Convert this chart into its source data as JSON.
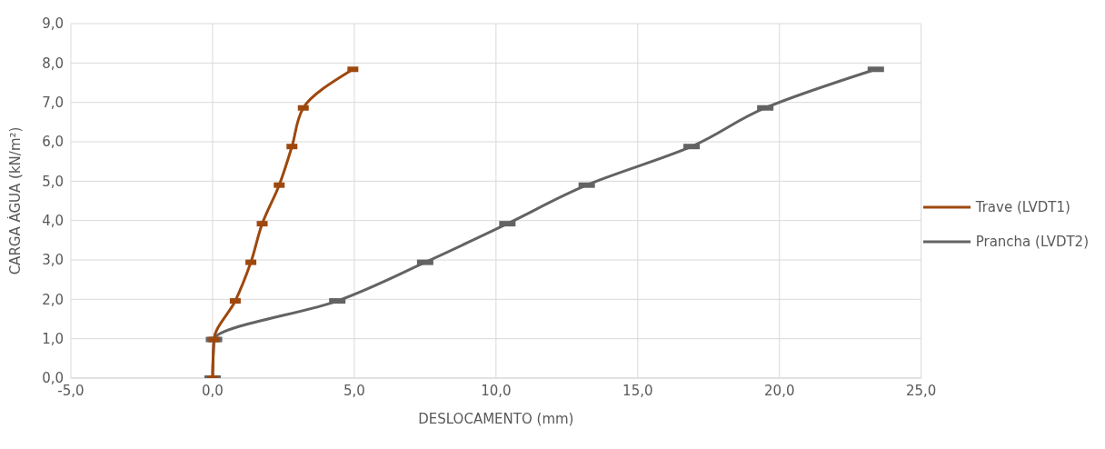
{
  "chart_data": {
    "type": "line",
    "xlabel": "DESLOCAMENTO (mm)",
    "ylabel": "CARGA ÁGUA (kN/m²)",
    "series": [
      {
        "name": "Trave (LVDT1)",
        "color": "#9e480e",
        "x": [
          0,
          0.05,
          0.8,
          1.35,
          1.75,
          2.35,
          2.8,
          3.2,
          4.95
        ],
        "values": [
          0,
          0.98,
          1.96,
          2.94,
          3.92,
          4.9,
          5.88,
          6.86,
          7.84
        ]
      },
      {
        "name": "Prancha (LVDT2)",
        "color": "#636363",
        "x": [
          0,
          0.05,
          4.4,
          7.5,
          10.4,
          13.2,
          16.9,
          19.5,
          23.4
        ],
        "values": [
          0,
          0.98,
          1.96,
          2.94,
          3.92,
          4.9,
          5.88,
          6.86,
          7.84
        ]
      }
    ],
    "xlim": [
      -5,
      25
    ],
    "xticks": [
      {
        "value": -5,
        "label": "-5,0"
      },
      {
        "value": 0,
        "label": "0,0"
      },
      {
        "value": 5,
        "label": "5,0"
      },
      {
        "value": 10,
        "label": "10,0"
      },
      {
        "value": 15,
        "label": "15,0"
      },
      {
        "value": 20,
        "label": "20,0"
      },
      {
        "value": 25,
        "label": "25,0"
      }
    ],
    "ylim": [
      0,
      9
    ],
    "yticks": [
      {
        "value": 0,
        "label": "0,0"
      },
      {
        "value": 1,
        "label": "1,0"
      },
      {
        "value": 2,
        "label": "2,0"
      },
      {
        "value": 3,
        "label": "3,0"
      },
      {
        "value": 4,
        "label": "4,0"
      },
      {
        "value": 5,
        "label": "5,0"
      },
      {
        "value": 6,
        "label": "6,0"
      },
      {
        "value": 7,
        "label": "7,0"
      },
      {
        "value": 8,
        "label": "8,0"
      },
      {
        "value": 9,
        "label": "9,0"
      }
    ],
    "grid": true,
    "legend": "right",
    "marker": "square",
    "line_style": "solid"
  }
}
